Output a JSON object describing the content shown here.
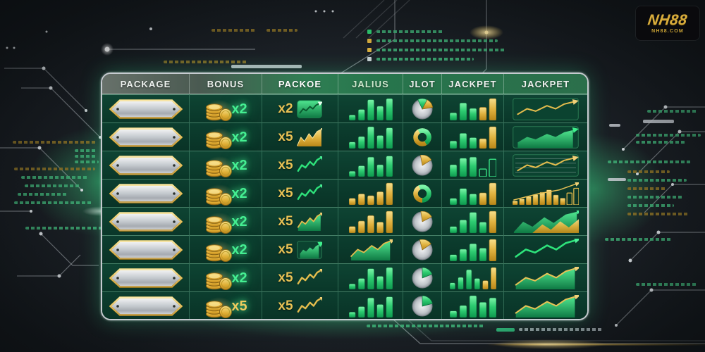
{
  "logo": {
    "title": "NH88",
    "subtitle": "NH88.COM"
  },
  "colors": {
    "accent_green": "#2ecc71",
    "accent_gold": "#d9ad3c",
    "silver": "#c6cbd0",
    "table_green_dark": "#0a3628",
    "background": "#1c2127",
    "legend_swatches": [
      "#2ecc71",
      "#d8ae3e",
      "#d8ae3e",
      "#c7ced2"
    ]
  },
  "table": {
    "columns": [
      {
        "label": "PACKAGE",
        "color": "#eef2ef"
      },
      {
        "label": "BONUS",
        "color": "#eef2ef"
      },
      {
        "label": "PACKOE",
        "color": "#ffffff"
      },
      {
        "label": "JALIUS",
        "color": "#cfe9cf"
      },
      {
        "label": "JLOT",
        "color": "#eef2ef"
      },
      {
        "label": "JACKPET",
        "color": "#eef2ef"
      },
      {
        "label": "JACKPET",
        "color": "#eef2ef"
      }
    ],
    "rows": [
      {
        "package": "silver-badge",
        "bonus": {
          "multiplier": "x2",
          "style": "green"
        },
        "packoe": {
          "multiplier": "x2",
          "chart": "panelGreenZig"
        },
        "jalius": {
          "type": "bars",
          "palette": "green",
          "heights": [
            0.25,
            0.5,
            0.95,
            0.65,
            1.0
          ]
        },
        "jlot": {
          "type": "pie",
          "slices": [
            {
              "color": "green",
              "from": -25,
              "to": 28
            },
            {
              "color": "gold",
              "from": 28,
              "to": 80
            }
          ]
        },
        "jackpet": {
          "heights": [
            0.35,
            0.8,
            0.55,
            0.6,
            1.0
          ],
          "colors": [
            "g",
            "g",
            "g",
            "y",
            "y"
          ]
        },
        "jackpet2": {
          "kind": "panelGoldLine"
        }
      },
      {
        "package": "silver-badge",
        "bonus": {
          "multiplier": "x2",
          "style": "green"
        },
        "packoe": {
          "multiplier": "x5",
          "chart": "mountainGold"
        },
        "jalius": {
          "type": "bars",
          "palette": "green",
          "heights": [
            0.3,
            0.55,
            1.0,
            0.6,
            0.95
          ]
        },
        "jlot": {
          "type": "donut",
          "ring": "gold",
          "arc": {
            "color": "green",
            "from": -30,
            "to": 150
          }
        },
        "jackpet": {
          "heights": [
            0.35,
            0.7,
            0.5,
            0.45,
            1.0
          ],
          "colors": [
            "g",
            "g",
            "g",
            "y",
            "y"
          ]
        },
        "jackpet2": {
          "kind": "panelGreenArea2"
        }
      },
      {
        "package": "silver-badge",
        "bonus": {
          "multiplier": "x2",
          "style": "green"
        },
        "packoe": {
          "multiplier": "x5",
          "chart": "lineGreen"
        },
        "jalius": {
          "type": "bars",
          "palette": "green",
          "heights": [
            0.25,
            0.5,
            0.9,
            0.55,
            0.95
          ]
        },
        "jlot": {
          "type": "pie",
          "slices": [
            {
              "color": "gold",
              "from": -10,
              "to": 58
            }
          ]
        },
        "jackpet": {
          "heights": [
            0.55,
            0.85,
            0.9,
            0.35,
            0.8
          ],
          "colors": [
            "g",
            "g",
            "g",
            "go",
            "go"
          ]
        },
        "jackpet2": {
          "kind": "panelGridGold"
        }
      },
      {
        "package": "silver-badge",
        "bonus": {
          "multiplier": "x2",
          "style": "green"
        },
        "packoe": {
          "multiplier": "x5",
          "chart": "lineGreen"
        },
        "jalius": {
          "type": "bars",
          "palette": "gold",
          "heights": [
            0.3,
            0.5,
            0.42,
            0.6,
            1.0
          ]
        },
        "jlot": {
          "type": "donut",
          "ring": "green",
          "arc": {
            "color": "gold",
            "from": 180,
            "to": 335
          }
        },
        "jackpet": {
          "heights": [
            0.3,
            0.75,
            0.5,
            0.55,
            1.0
          ],
          "colors": [
            "g",
            "g",
            "g",
            "y",
            "y"
          ]
        },
        "jackpet2": {
          "kind": "barsGoldLine"
        }
      },
      {
        "package": "silver-badge",
        "bonus": {
          "multiplier": "x2",
          "style": "green"
        },
        "packoe": {
          "multiplier": "x5",
          "chart": "areaGreenGoldArrow"
        },
        "jalius": {
          "type": "bars",
          "palette": "gold",
          "heights": [
            0.3,
            0.55,
            0.8,
            0.5,
            1.0
          ]
        },
        "jlot": {
          "type": "pie",
          "slices": [
            {
              "color": "gold",
              "from": -8,
              "to": 62
            }
          ]
        },
        "jackpet": {
          "heights": [
            0.3,
            0.6,
            0.95,
            0.5,
            1.0
          ],
          "colors": [
            "g",
            "g",
            "g",
            "g",
            "y"
          ]
        },
        "jackpet2": {
          "kind": "mountainsMix"
        }
      },
      {
        "package": "silver-badge",
        "bonus": {
          "multiplier": "x2",
          "style": "green"
        },
        "packoe": {
          "multiplier": "x5",
          "chart": "panelGreenArea"
        },
        "jalius": {
          "type": "chart",
          "kind": "areaGreenGoldArrow"
        },
        "jlot": {
          "type": "pie",
          "slices": [
            {
              "color": "gold",
              "from": -14,
              "to": 55
            }
          ]
        },
        "jackpet": {
          "heights": [
            0.3,
            0.55,
            0.8,
            0.6,
            1.0
          ],
          "colors": [
            "g",
            "g",
            "g",
            "g",
            "y"
          ]
        },
        "jackpet2": {
          "kind": "lineGreenBig"
        }
      },
      {
        "package": "silver-badge",
        "bonus": {
          "multiplier": "x2",
          "style": "green"
        },
        "packoe": {
          "multiplier": "x5",
          "chart": "lineGold"
        },
        "jalius": {
          "type": "bars",
          "palette": "green",
          "heights": [
            0.25,
            0.5,
            0.95,
            0.6,
            1.0
          ]
        },
        "jlot": {
          "type": "pie",
          "slices": [
            {
              "color": "green",
              "from": 0,
              "to": 68
            }
          ]
        },
        "jackpet": {
          "heights": [
            0.3,
            0.55,
            0.9,
            0.5,
            0.4,
            1.0
          ],
          "colors": [
            "g",
            "g",
            "g",
            "g",
            "y",
            "y"
          ]
        },
        "jackpet2": {
          "kind": "areaGoldLine"
        }
      },
      {
        "package": "silver-badge",
        "bonus": {
          "multiplier": "x5",
          "style": "goldgreen"
        },
        "packoe": {
          "multiplier": "x5",
          "chart": "lineGold"
        },
        "jalius": {
          "type": "bars",
          "palette": "green",
          "heights": [
            0.25,
            0.5,
            0.9,
            0.6,
            0.95
          ]
        },
        "jlot": {
          "type": "pie",
          "slices": [
            {
              "color": "green",
              "from": 0,
              "to": 75
            }
          ]
        },
        "jackpet": {
          "heights": [
            0.3,
            0.55,
            1.0,
            0.7,
            0.9
          ],
          "colors": [
            "g",
            "g",
            "g",
            "g",
            "g"
          ]
        },
        "jackpet2": {
          "kind": "areaGoldLine"
        }
      }
    ]
  }
}
